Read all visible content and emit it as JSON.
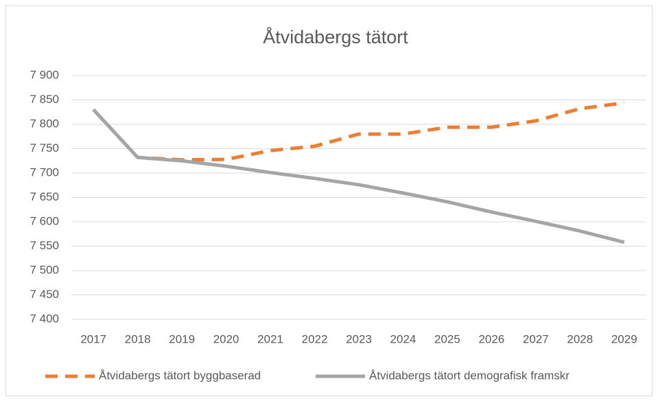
{
  "chart_data": {
    "type": "line",
    "title": "Åtvidabergs tätort",
    "categories": [
      "2017",
      "2018",
      "2019",
      "2020",
      "2021",
      "2022",
      "2023",
      "2024",
      "2025",
      "2026",
      "2027",
      "2028",
      "2029"
    ],
    "series": [
      {
        "name": "Åtvidabergs tätort byggbaserad",
        "color": "#ed7d31",
        "dashed": true,
        "values": [
          7830,
          7732,
          7727,
          7728,
          7746,
          7755,
          7780,
          7780,
          7794,
          7794,
          7807,
          7832,
          7844
        ]
      },
      {
        "name": "Åtvidabergs tätort demografisk framskr",
        "color": "#a5a5a5",
        "dashed": false,
        "values": [
          7830,
          7732,
          7725,
          7714,
          7701,
          7689,
          7676,
          7659,
          7641,
          7620,
          7601,
          7581,
          7558
        ]
      }
    ],
    "ylim": [
      7400,
      7900
    ],
    "yticks": [
      {
        "value": 7400,
        "label": "7 400"
      },
      {
        "value": 7450,
        "label": "7 450"
      },
      {
        "value": 7500,
        "label": "7 500"
      },
      {
        "value": 7550,
        "label": "7 550"
      },
      {
        "value": 7600,
        "label": "7 600"
      },
      {
        "value": 7650,
        "label": "7 650"
      },
      {
        "value": 7700,
        "label": "7 700"
      },
      {
        "value": 7750,
        "label": "7 750"
      },
      {
        "value": 7800,
        "label": "7 800"
      },
      {
        "value": 7850,
        "label": "7 850"
      },
      {
        "value": 7900,
        "label": "7 900"
      }
    ],
    "grid": true,
    "legend": "bottom"
  }
}
